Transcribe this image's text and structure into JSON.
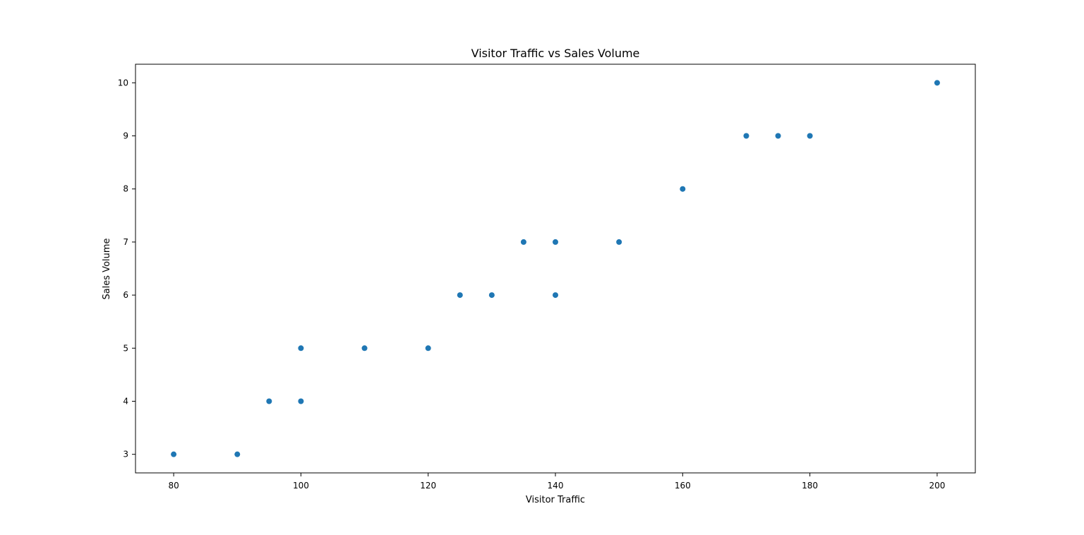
{
  "chart_data": {
    "type": "scatter",
    "title": "Visitor Traffic vs Sales Volume",
    "xlabel": "Visitor Traffic",
    "ylabel": "Sales Volume",
    "xlim": [
      74,
      206
    ],
    "ylim": [
      2.65,
      10.35
    ],
    "xticks": [
      80,
      100,
      120,
      140,
      160,
      180,
      200
    ],
    "yticks": [
      3,
      4,
      5,
      6,
      7,
      8,
      9,
      10
    ],
    "grid": false,
    "legend": "none",
    "marker_color": "#1f77b4",
    "points": [
      {
        "x": 80,
        "y": 3
      },
      {
        "x": 90,
        "y": 3
      },
      {
        "x": 95,
        "y": 4
      },
      {
        "x": 100,
        "y": 4
      },
      {
        "x": 100,
        "y": 5
      },
      {
        "x": 110,
        "y": 5
      },
      {
        "x": 120,
        "y": 5
      },
      {
        "x": 125,
        "y": 6
      },
      {
        "x": 130,
        "y": 6
      },
      {
        "x": 135,
        "y": 7
      },
      {
        "x": 140,
        "y": 6
      },
      {
        "x": 140,
        "y": 7
      },
      {
        "x": 150,
        "y": 7
      },
      {
        "x": 160,
        "y": 8
      },
      {
        "x": 170,
        "y": 9
      },
      {
        "x": 175,
        "y": 9
      },
      {
        "x": 180,
        "y": 9
      },
      {
        "x": 200,
        "y": 10
      }
    ]
  }
}
